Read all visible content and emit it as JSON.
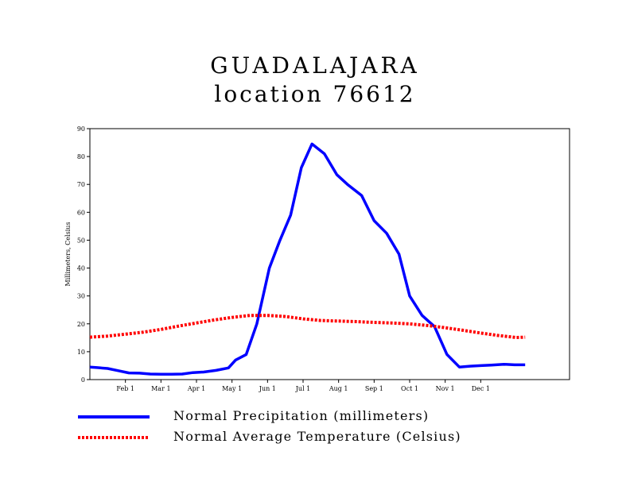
{
  "chart_data": {
    "type": "line",
    "title": "GUADALAJARA",
    "subtitle": "location 76612",
    "ylabel": "Millimeters, Celsius",
    "xlabel": "",
    "ylim": [
      0,
      90
    ],
    "yticks": [
      0,
      10,
      20,
      30,
      40,
      50,
      60,
      70,
      80,
      90
    ],
    "x_domain_months": [
      0,
      13.5
    ],
    "month_ticks": [
      {
        "label": "Feb 1",
        "month": 1
      },
      {
        "label": "Mar 1",
        "month": 2
      },
      {
        "label": "Apr 1",
        "month": 3
      },
      {
        "label": "May 1",
        "month": 4
      },
      {
        "label": "Jun 1",
        "month": 5
      },
      {
        "label": "Jul 1",
        "month": 6
      },
      {
        "label": "Aug 1",
        "month": 7
      },
      {
        "label": "Sep 1",
        "month": 8
      },
      {
        "label": "Oct 1",
        "month": 9
      },
      {
        "label": "Nov 1",
        "month": 10
      },
      {
        "label": "Dec 1",
        "month": 11
      }
    ],
    "grid": false,
    "legend_position": "bottom-left",
    "series": [
      {
        "name": "Normal Precipitation (millimeters)",
        "color": "#0000ff",
        "style": "solid",
        "x": [
          0.0,
          0.2,
          0.5,
          0.8,
          1.1,
          1.4,
          1.7,
          2.0,
          2.3,
          2.6,
          2.9,
          3.2,
          3.55,
          3.9,
          4.1,
          4.4,
          4.7,
          5.05,
          5.35,
          5.65,
          5.95,
          6.25,
          6.6,
          6.95,
          7.25,
          7.65,
          8.0,
          8.35,
          8.7,
          9.0,
          9.35,
          9.7,
          10.05,
          10.4,
          10.7,
          11.0,
          11.3,
          11.65,
          11.95,
          12.25
        ],
        "y": [
          4.5,
          4.3,
          4.0,
          3.2,
          2.4,
          2.3,
          2.0,
          1.9,
          1.9,
          2.0,
          2.5,
          2.7,
          3.3,
          4.2,
          7.0,
          9.0,
          20.0,
          40.0,
          50.0,
          59.0,
          76.0,
          84.5,
          81.0,
          73.5,
          70.0,
          66.0,
          57.0,
          52.5,
          45.0,
          30.0,
          23.0,
          19.0,
          9.0,
          4.5,
          4.8,
          5.0,
          5.2,
          5.5,
          5.3,
          5.3
        ]
      },
      {
        "name": "Normal Average Temperature (Celsius)",
        "color": "#ff0000",
        "style": "dotted",
        "x": [
          0.0,
          0.5,
          1.0,
          1.5,
          2.0,
          2.5,
          3.0,
          3.5,
          4.0,
          4.5,
          5.0,
          5.5,
          6.0,
          6.5,
          7.0,
          7.5,
          8.0,
          8.5,
          9.0,
          9.5,
          10.0,
          10.5,
          11.0,
          11.5,
          12.0,
          12.25
        ],
        "y": [
          15.2,
          15.6,
          16.3,
          17.0,
          18.0,
          19.2,
          20.3,
          21.4,
          22.3,
          23.0,
          23.0,
          22.6,
          21.8,
          21.2,
          21.0,
          20.8,
          20.5,
          20.3,
          20.0,
          19.4,
          18.6,
          17.7,
          16.7,
          15.8,
          15.1,
          15.2
        ]
      }
    ]
  }
}
